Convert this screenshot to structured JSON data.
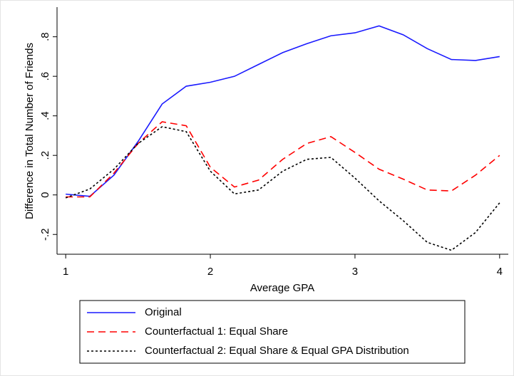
{
  "chart_data": {
    "type": "line",
    "x_label": "Average GPA",
    "y_label": "Difference in Total Number of Friends",
    "x": [
      1,
      1.1667,
      1.3333,
      1.5,
      1.6667,
      1.8333,
      2,
      2.1667,
      2.3333,
      2.5,
      2.6667,
      2.8333,
      3,
      3.1667,
      3.3333,
      3.5,
      3.6667,
      3.8333,
      4
    ],
    "series": [
      {
        "name": "Original",
        "color": "#1a1aff",
        "line_style": "solid",
        "values": [
          0.004,
          -0.007,
          0.1,
          0.27,
          0.46,
          0.55,
          0.57,
          0.6,
          0.66,
          0.72,
          0.765,
          0.805,
          0.82,
          0.855,
          0.81,
          0.74,
          0.685,
          0.68,
          0.7
        ]
      },
      {
        "name": "Counterfactual 1: Equal Share",
        "color": "#ff0000",
        "line_style": "dashed",
        "values": [
          -0.01,
          -0.01,
          0.11,
          0.26,
          0.37,
          0.35,
          0.14,
          0.04,
          0.075,
          0.18,
          0.26,
          0.295,
          0.215,
          0.13,
          0.08,
          0.025,
          0.02,
          0.1,
          0.2
        ]
      },
      {
        "name": "Counterfactual 2: Equal Share & Equal GPA Distribution",
        "color": "#000000",
        "line_style": "dotted",
        "values": [
          -0.015,
          0.03,
          0.13,
          0.26,
          0.345,
          0.32,
          0.12,
          0.005,
          0.025,
          0.12,
          0.18,
          0.19,
          0.085,
          -0.03,
          -0.13,
          -0.24,
          -0.28,
          -0.19,
          -0.04
        ]
      }
    ],
    "xlim": [
      0.94,
      4.06
    ],
    "xticks": [
      1,
      2,
      3,
      4
    ],
    "ylim": [
      -0.3,
      0.95
    ],
    "yticks": [
      {
        "value": -0.2,
        "label": "-.2"
      },
      0,
      {
        "value": 0.2,
        "label": ".2"
      },
      {
        "value": 0.4,
        "label": ".4"
      },
      {
        "value": 0.6,
        "label": ".6"
      },
      {
        "value": 0.8,
        "label": ".8"
      }
    ],
    "grid": false,
    "legend_position": "bottom"
  }
}
